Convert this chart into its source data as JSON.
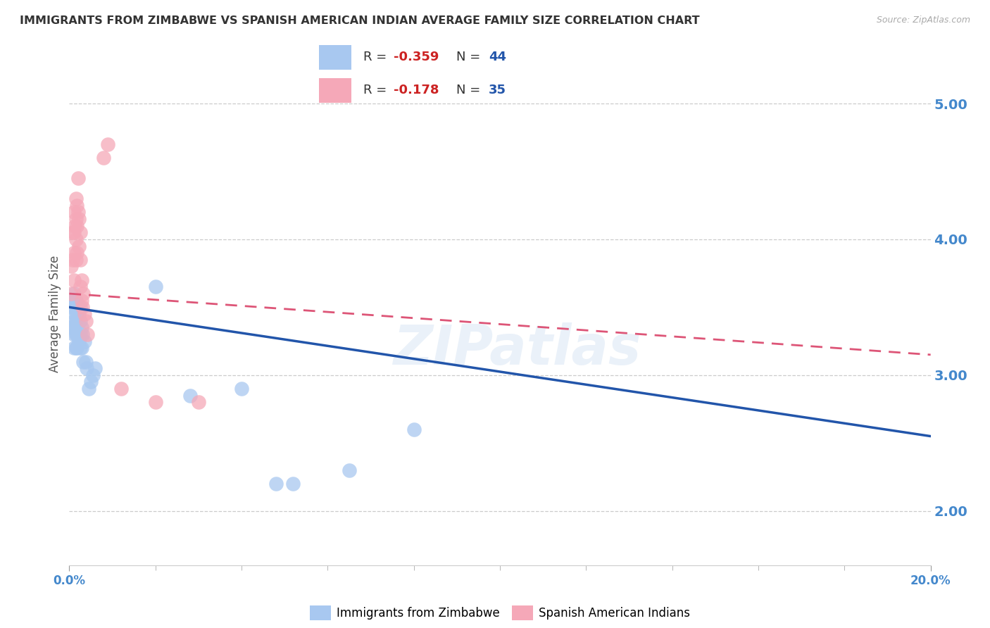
{
  "title": "IMMIGRANTS FROM ZIMBABWE VS SPANISH AMERICAN INDIAN AVERAGE FAMILY SIZE CORRELATION CHART",
  "source": "Source: ZipAtlas.com",
  "ylabel": "Average Family Size",
  "watermark": "ZIPatlas",
  "blue_legend_r": "R = -0.359",
  "blue_legend_n": "N = 44",
  "pink_legend_r": "R = -0.178",
  "pink_legend_n": "N = 35",
  "blue_color": "#a8c8f0",
  "pink_color": "#f5a8b8",
  "blue_line_color": "#2255aa",
  "pink_line_color": "#dd5577",
  "blue_x": [
    0.0005,
    0.0005,
    0.0008,
    0.0008,
    0.001,
    0.001,
    0.001,
    0.001,
    0.001,
    0.0012,
    0.0012,
    0.0015,
    0.0015,
    0.0015,
    0.0015,
    0.0018,
    0.0018,
    0.0018,
    0.002,
    0.002,
    0.0022,
    0.0022,
    0.0025,
    0.0025,
    0.0025,
    0.0025,
    0.0028,
    0.0028,
    0.003,
    0.0032,
    0.0035,
    0.0038,
    0.004,
    0.0045,
    0.005,
    0.0055,
    0.006,
    0.02,
    0.028,
    0.04,
    0.048,
    0.052,
    0.065,
    0.08
  ],
  "blue_y": [
    3.5,
    3.35,
    3.55,
    3.35,
    3.6,
    3.5,
    3.4,
    3.3,
    3.2,
    3.45,
    3.35,
    3.55,
    3.4,
    3.3,
    3.2,
    3.45,
    3.3,
    3.2,
    3.5,
    3.3,
    3.45,
    3.25,
    3.5,
    3.4,
    3.3,
    3.2,
    3.35,
    3.2,
    3.3,
    3.1,
    3.25,
    3.1,
    3.05,
    2.9,
    2.95,
    3.0,
    3.05,
    3.65,
    2.85,
    2.9,
    2.2,
    2.2,
    2.3,
    2.6
  ],
  "pink_x": [
    0.0005,
    0.0005,
    0.0008,
    0.0008,
    0.001,
    0.001,
    0.001,
    0.001,
    0.0012,
    0.0015,
    0.0015,
    0.0015,
    0.0015,
    0.0018,
    0.0018,
    0.0018,
    0.002,
    0.002,
    0.0022,
    0.0022,
    0.0025,
    0.0025,
    0.0025,
    0.0028,
    0.0028,
    0.003,
    0.0032,
    0.0035,
    0.0038,
    0.0042,
    0.008,
    0.009,
    0.012,
    0.02,
    0.03
  ],
  "pink_y": [
    3.8,
    3.6,
    4.05,
    3.85,
    4.2,
    4.05,
    3.9,
    3.7,
    4.1,
    4.3,
    4.15,
    4.0,
    3.85,
    4.25,
    4.1,
    3.9,
    4.45,
    4.2,
    4.15,
    3.95,
    4.05,
    3.85,
    3.65,
    3.7,
    3.55,
    3.5,
    3.6,
    3.45,
    3.4,
    3.3,
    4.6,
    4.7,
    2.9,
    2.8,
    2.8
  ],
  "xlim": [
    0.0,
    0.2
  ],
  "ylim": [
    1.6,
    5.3
  ],
  "y_ticks": [
    2.0,
    3.0,
    4.0,
    5.0
  ],
  "y_ticks_color": "#4488cc",
  "blue_trend_x0": 0.0,
  "blue_trend_x1": 0.2,
  "blue_trend_y0": 3.5,
  "blue_trend_y1": 2.55,
  "pink_trend_x0": 0.0,
  "pink_trend_x1": 0.2,
  "pink_trend_y0": 3.6,
  "pink_trend_y1": 3.15,
  "background_color": "#ffffff",
  "grid_color": "#cccccc"
}
